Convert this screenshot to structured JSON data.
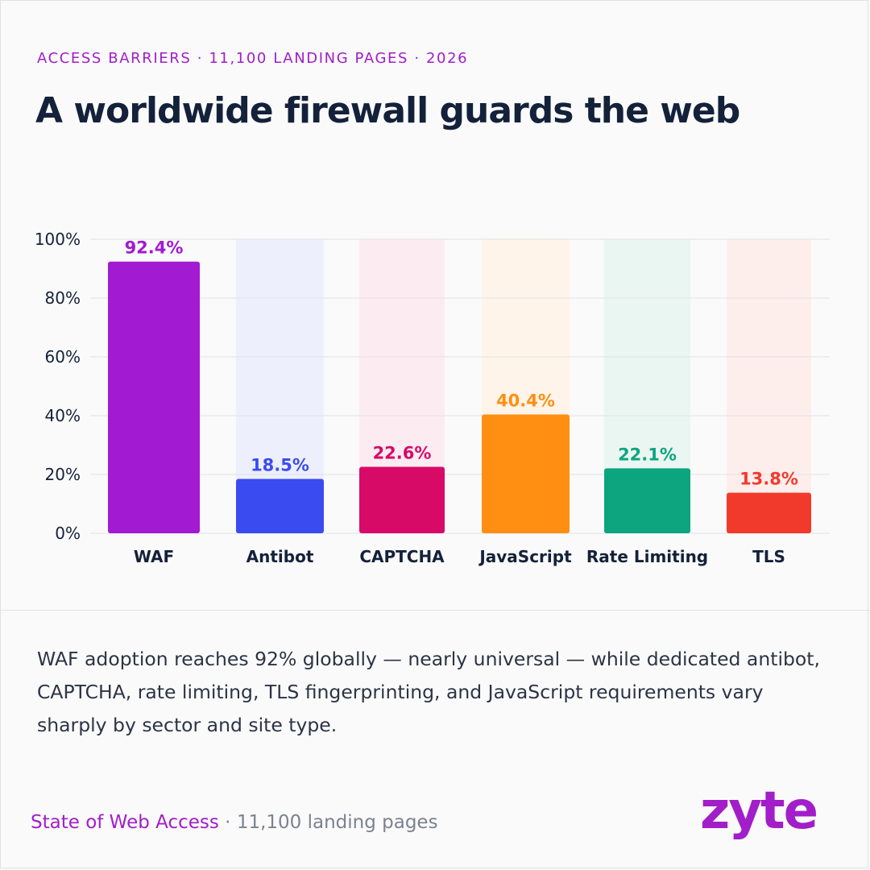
{
  "header": {
    "eyebrow": "ACCESS BARRIERS · 11,100 LANDING PAGES · 2026",
    "title": "A worldwide firewall guards the web"
  },
  "chart_data": {
    "type": "bar",
    "categories": [
      "WAF",
      "Antibot",
      "CAPTCHA",
      "JavaScript",
      "Rate Limiting",
      "TLS"
    ],
    "values": [
      92.4,
      18.5,
      22.6,
      40.4,
      22.1,
      13.8
    ],
    "value_labels": [
      "92.4%",
      "18.5%",
      "22.6%",
      "40.4%",
      "22.1%",
      "13.8%"
    ],
    "colors": [
      "#a21ad2",
      "#3a4cf0",
      "#d70a68",
      "#ff8f12",
      "#0ca57f",
      "#f23a2c"
    ],
    "background_tints": [
      "#fafafa",
      "#eeeffd",
      "#fcecf1",
      "#fef4ea",
      "#eaf6f1",
      "#fdeeec"
    ],
    "yticks": [
      0,
      20,
      40,
      60,
      80,
      100
    ],
    "ytick_labels": [
      "0%",
      "20%",
      "40%",
      "60%",
      "80%",
      "100%"
    ],
    "ylim": [
      0,
      100
    ],
    "grid": true,
    "title": "",
    "xlabel": "",
    "ylabel": ""
  },
  "description": "WAF adoption reaches 92% globally — nearly universal — while dedicated antibot, CAPTCHA, rate limiting, TLS fingerprinting, and JavaScript requirements vary sharply by sector and site type.",
  "footer": {
    "brand_name": "State of Web Access",
    "separator": " · ",
    "page_count": "11,100 landing pages"
  },
  "logo": {
    "text": "zyte"
  }
}
